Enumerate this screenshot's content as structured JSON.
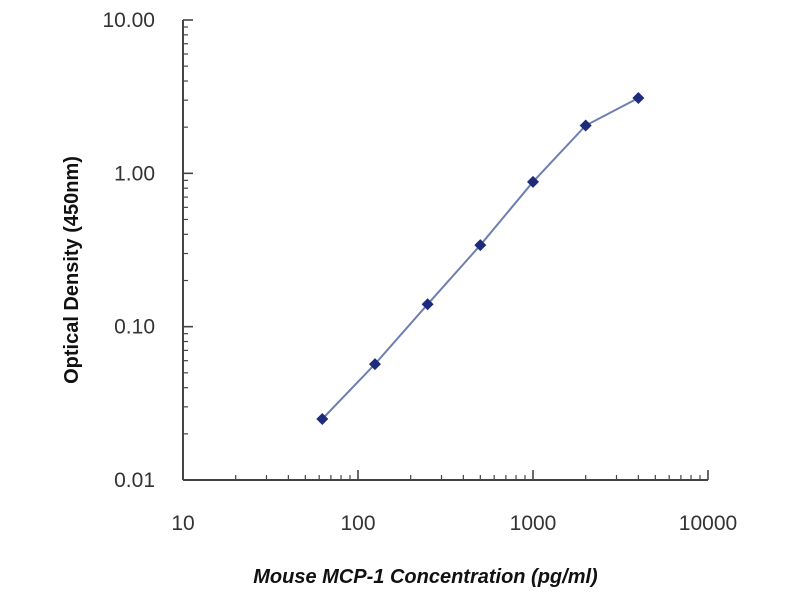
{
  "chart_data": {
    "type": "line",
    "xlabel": "Mouse MCP-1 Concentration (pg/ml)",
    "ylabel": "Optical Density (450nm)",
    "x_scale": "log",
    "y_scale": "log",
    "xlim": [
      10,
      10000
    ],
    "ylim": [
      0.01,
      10
    ],
    "x_ticks": [
      10,
      100,
      1000,
      10000
    ],
    "x_tick_labels": [
      "10",
      "100",
      "1000",
      "10000"
    ],
    "y_ticks": [
      0.01,
      0.1,
      1,
      10
    ],
    "y_tick_labels": [
      "0.01",
      "0.10",
      "1.00",
      "10.00"
    ],
    "grid": false,
    "series": [
      {
        "x": [
          62.5,
          125,
          250,
          500,
          1000,
          2000,
          4000
        ],
        "y": [
          0.025,
          0.057,
          0.14,
          0.34,
          0.88,
          2.05,
          3.1
        ]
      }
    ],
    "colors": {
      "line": "#6f7fb3",
      "marker": "#1e2b7a",
      "axis": "#444444"
    }
  }
}
